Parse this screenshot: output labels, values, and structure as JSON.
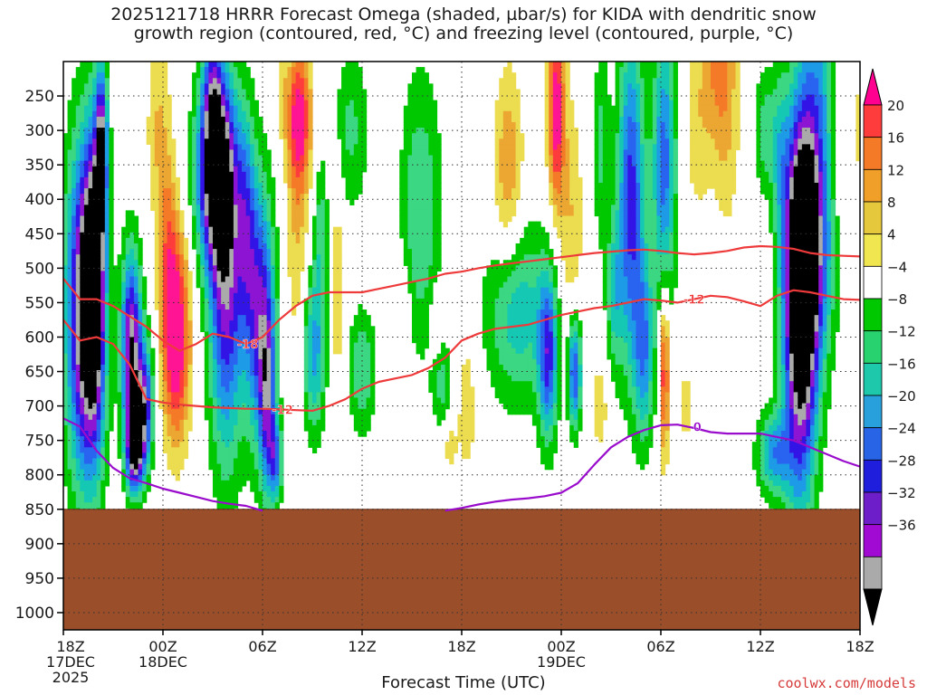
{
  "chart_data": {
    "type": "heatmap",
    "title": "2025121718 HRRR Forecast Omega (shaded, µbar/s) for KIDA with dendritic snow",
    "subtitle": "growth region (contoured, red, °C) and freezing level (contoured, purple, °C)",
    "xlabel": "Forecast Time (UTC)",
    "ylabel": "",
    "x_ticks": [
      {
        "h": 0,
        "l1": "18Z",
        "l2": "17DEC",
        "l3": "2025"
      },
      {
        "h": 6,
        "l1": "00Z",
        "l2": "18DEC",
        "l3": ""
      },
      {
        "h": 12,
        "l1": "06Z",
        "l2": "",
        "l3": ""
      },
      {
        "h": 18,
        "l1": "12Z",
        "l2": "",
        "l3": ""
      },
      {
        "h": 24,
        "l1": "18Z",
        "l2": "",
        "l3": ""
      },
      {
        "h": 30,
        "l1": "00Z",
        "l2": "19DEC",
        "l3": ""
      },
      {
        "h": 36,
        "l1": "06Z",
        "l2": "",
        "l3": ""
      },
      {
        "h": 42,
        "l1": "12Z",
        "l2": "",
        "l3": ""
      },
      {
        "h": 48,
        "l1": "18Z",
        "l2": "",
        "l3": ""
      }
    ],
    "y_ticks": [
      250,
      300,
      350,
      400,
      450,
      500,
      550,
      600,
      650,
      700,
      750,
      800,
      850,
      900,
      950,
      1000
    ],
    "ylim": [
      200,
      1025
    ],
    "xlim": [
      0,
      48
    ],
    "grid": true,
    "colorbar": {
      "labels": [
        "20",
        "16",
        "12",
        "8",
        "4",
        "−4",
        "−8",
        "−12",
        "−16",
        "−20",
        "−24",
        "−28",
        "−32",
        "−36"
      ],
      "colors": [
        "#ff0090",
        "#ff3c3c",
        "#f57a28",
        "#f0a028",
        "#e6c83c",
        "#f0e650",
        "#ffffff",
        "#00c800",
        "#28d26e",
        "#1ec8aa",
        "#28a0dc",
        "#2864e6",
        "#1e1edc",
        "#6e1ec8",
        "#a00ad2",
        "#aaaaaa",
        "#000000"
      ]
    },
    "contours": {
      "dgz_top_label": "-12",
      "dgz_bottom_label": "-18",
      "dgz_bottom2_label": "-12",
      "freezing_label": "0",
      "dgz_upper": [
        [
          0,
          515
        ],
        [
          1,
          545
        ],
        [
          2,
          545
        ],
        [
          3,
          555
        ],
        [
          4,
          570
        ],
        [
          5,
          585
        ],
        [
          6,
          605
        ],
        [
          7,
          620
        ],
        [
          8,
          610
        ],
        [
          9,
          595
        ],
        [
          10,
          600
        ],
        [
          11,
          610
        ],
        [
          12,
          600
        ],
        [
          13,
          575
        ],
        [
          14,
          555
        ],
        [
          15,
          540
        ],
        [
          16,
          535
        ],
        [
          17,
          535
        ],
        [
          18,
          535
        ],
        [
          19,
          530
        ],
        [
          20,
          525
        ],
        [
          21,
          520
        ],
        [
          22,
          515
        ],
        [
          23,
          508
        ],
        [
          24,
          505
        ],
        [
          25,
          500
        ],
        [
          26,
          496
        ],
        [
          27,
          493
        ],
        [
          28,
          490
        ],
        [
          29,
          487
        ],
        [
          30,
          484
        ],
        [
          31,
          481
        ],
        [
          32,
          478
        ],
        [
          33,
          476
        ],
        [
          34,
          474
        ],
        [
          35,
          473
        ],
        [
          36,
          475
        ],
        [
          37,
          478
        ],
        [
          38,
          480
        ],
        [
          39,
          478
        ],
        [
          40,
          475
        ],
        [
          41,
          470
        ],
        [
          42,
          468
        ],
        [
          43,
          469
        ],
        [
          44,
          472
        ],
        [
          45,
          478
        ],
        [
          46,
          481
        ],
        [
          47,
          482
        ],
        [
          48,
          483
        ]
      ],
      "dgz_lower": [
        [
          0,
          575
        ],
        [
          1,
          605
        ],
        [
          2,
          600
        ],
        [
          3,
          610
        ],
        [
          4,
          640
        ],
        [
          5,
          690
        ],
        [
          6,
          695
        ],
        [
          7,
          698
        ],
        [
          8,
          700
        ],
        [
          9,
          702
        ],
        [
          10,
          703
        ],
        [
          11,
          704
        ],
        [
          12,
          704
        ],
        [
          13,
          705
        ],
        [
          14,
          706
        ],
        [
          15,
          707
        ],
        [
          16,
          700
        ],
        [
          17,
          690
        ],
        [
          18,
          675
        ],
        [
          19,
          665
        ],
        [
          20,
          660
        ],
        [
          21,
          655
        ],
        [
          22,
          645
        ],
        [
          23,
          630
        ],
        [
          24,
          605
        ],
        [
          25,
          595
        ],
        [
          26,
          588
        ],
        [
          27,
          585
        ],
        [
          28,
          582
        ],
        [
          29,
          575
        ],
        [
          30,
          568
        ],
        [
          31,
          563
        ],
        [
          32,
          558
        ],
        [
          33,
          555
        ],
        [
          34,
          550
        ],
        [
          35,
          545
        ],
        [
          36,
          547
        ],
        [
          37,
          550
        ],
        [
          38,
          545
        ],
        [
          39,
          540
        ],
        [
          40,
          542
        ],
        [
          41,
          548
        ],
        [
          42,
          555
        ],
        [
          43,
          540
        ],
        [
          44,
          532
        ],
        [
          45,
          535
        ],
        [
          46,
          540
        ],
        [
          47,
          545
        ],
        [
          48,
          546
        ]
      ],
      "freezing": [
        [
          0,
          718
        ],
        [
          1,
          730
        ],
        [
          2,
          765
        ],
        [
          3,
          790
        ],
        [
          4,
          805
        ],
        [
          5,
          812
        ],
        [
          6,
          820
        ],
        [
          7,
          826
        ],
        [
          8,
          832
        ],
        [
          9,
          838
        ],
        [
          10,
          842
        ],
        [
          11,
          845
        ],
        [
          12,
          852
        ]
      ],
      "freezing2": [
        [
          23,
          852
        ],
        [
          24,
          848
        ],
        [
          25,
          843
        ],
        [
          26,
          839
        ],
        [
          27,
          836
        ],
        [
          28,
          834
        ],
        [
          29,
          831
        ],
        [
          30,
          826
        ],
        [
          31,
          812
        ],
        [
          32,
          785
        ],
        [
          33,
          760
        ],
        [
          34,
          745
        ],
        [
          35,
          735
        ],
        [
          36,
          728
        ],
        [
          37,
          727
        ],
        [
          38,
          732
        ],
        [
          39,
          738
        ],
        [
          40,
          740
        ],
        [
          41,
          740
        ],
        [
          42,
          740
        ],
        [
          43,
          745
        ],
        [
          44,
          750
        ],
        [
          45,
          760
        ],
        [
          46,
          770
        ],
        [
          47,
          780
        ],
        [
          48,
          788
        ]
      ],
      "ground_top": 850
    },
    "cells": [
      {
        "h": 1.3,
        "p": 560,
        "w": 1.1,
        "d": 240,
        "v": -40
      },
      {
        "h": 2.3,
        "p": 330,
        "w": 0.35,
        "d": 120,
        "v": -30
      },
      {
        "h": 1.9,
        "p": 520,
        "w": 0.6,
        "d": 220,
        "v": -26
      },
      {
        "h": 4.1,
        "p": 620,
        "w": 0.6,
        "d": 140,
        "v": -36
      },
      {
        "h": 4.9,
        "p": 700,
        "w": 0.5,
        "d": 90,
        "v": -28
      },
      {
        "h": 4.3,
        "p": 760,
        "w": 0.5,
        "d": 60,
        "v": -34
      },
      {
        "h": 6.3,
        "p": 470,
        "w": 0.5,
        "d": 150,
        "v": 10
      },
      {
        "h": 6.8,
        "p": 600,
        "w": 0.8,
        "d": 150,
        "v": 26
      },
      {
        "h": 5.7,
        "p": 300,
        "w": 0.7,
        "d": 150,
        "v": 8
      },
      {
        "h": 9.1,
        "p": 360,
        "w": 1.1,
        "d": 130,
        "v": -38
      },
      {
        "h": 9.8,
        "p": 520,
        "w": 1.0,
        "d": 250,
        "v": -30
      },
      {
        "h": 9.0,
        "p": 230,
        "w": 0.6,
        "d": 90,
        "v": -16
      },
      {
        "h": 11.0,
        "p": 420,
        "w": 0.6,
        "d": 160,
        "v": -14
      },
      {
        "h": 11.8,
        "p": 560,
        "w": 0.9,
        "d": 190,
        "v": -26
      },
      {
        "h": 12.3,
        "p": 690,
        "w": 0.5,
        "d": 140,
        "v": -22
      },
      {
        "h": 12.8,
        "p": 780,
        "w": 0.4,
        "d": 60,
        "v": -18
      },
      {
        "h": 14.2,
        "p": 280,
        "w": 0.7,
        "d": 100,
        "v": 22
      },
      {
        "h": 14.1,
        "p": 450,
        "w": 0.7,
        "d": 180,
        "v": 8
      },
      {
        "h": 13.2,
        "p": 250,
        "w": 0.3,
        "d": 60,
        "v": 6
      },
      {
        "h": 15.1,
        "p": 620,
        "w": 0.7,
        "d": 120,
        "v": -18
      },
      {
        "h": 15.5,
        "p": 450,
        "w": 0.4,
        "d": 110,
        "v": -10
      },
      {
        "h": 16.5,
        "p": 520,
        "w": 0.4,
        "d": 200,
        "v": 7
      },
      {
        "h": 17.3,
        "p": 300,
        "w": 1.1,
        "d": 120,
        "v": -9
      },
      {
        "h": 18.0,
        "p": 650,
        "w": 0.8,
        "d": 90,
        "v": -12
      },
      {
        "h": 19.6,
        "p": 410,
        "w": 0.6,
        "d": 110,
        "v": 5
      },
      {
        "h": 20.6,
        "p": 560,
        "w": 0.4,
        "d": 80,
        "v": 5
      },
      {
        "h": 21.5,
        "p": 420,
        "w": 1.3,
        "d": 200,
        "v": -12
      },
      {
        "h": 22.4,
        "p": 580,
        "w": 0.4,
        "d": 60,
        "v": 5
      },
      {
        "h": 24.3,
        "p": 700,
        "w": 0.6,
        "d": 110,
        "v": 7
      },
      {
        "h": 22.8,
        "p": 670,
        "w": 0.6,
        "d": 60,
        "v": -9
      },
      {
        "h": 23.3,
        "p": 760,
        "w": 0.4,
        "d": 40,
        "v": 6
      },
      {
        "h": 26.8,
        "p": 370,
        "w": 0.9,
        "d": 160,
        "v": 12
      },
      {
        "h": 27.3,
        "p": 560,
        "w": 1.8,
        "d": 130,
        "v": -16
      },
      {
        "h": 29.2,
        "p": 630,
        "w": 0.6,
        "d": 120,
        "v": -24
      },
      {
        "h": 29.7,
        "p": 270,
        "w": 0.5,
        "d": 140,
        "v": 23
      },
      {
        "h": 30.6,
        "p": 430,
        "w": 0.7,
        "d": 180,
        "v": 8
      },
      {
        "h": 30.8,
        "p": 650,
        "w": 0.4,
        "d": 80,
        "v": -26
      },
      {
        "h": 32.4,
        "p": 320,
        "w": 0.5,
        "d": 150,
        "v": -9
      },
      {
        "h": 32.3,
        "p": 700,
        "w": 0.5,
        "d": 70,
        "v": 7
      },
      {
        "h": 33.2,
        "p": 540,
        "w": 0.5,
        "d": 110,
        "v": -12
      },
      {
        "h": 34.2,
        "p": 400,
        "w": 0.8,
        "d": 240,
        "v": -26
      },
      {
        "h": 35.0,
        "p": 620,
        "w": 0.6,
        "d": 130,
        "v": -18
      },
      {
        "h": 36.2,
        "p": 650,
        "w": 0.3,
        "d": 120,
        "v": 20
      },
      {
        "h": 36.2,
        "p": 350,
        "w": 0.7,
        "d": 200,
        "v": -22
      },
      {
        "h": 37.5,
        "p": 700,
        "w": 0.3,
        "d": 80,
        "v": 6
      },
      {
        "h": 38.2,
        "p": 300,
        "w": 0.8,
        "d": 140,
        "v": 6
      },
      {
        "h": 39.5,
        "p": 170,
        "w": 1.0,
        "d": 150,
        "v": 14
      },
      {
        "h": 40.0,
        "p": 330,
        "w": 0.8,
        "d": 150,
        "v": 5
      },
      {
        "h": 42.3,
        "p": 300,
        "w": 0.7,
        "d": 90,
        "v": -10
      },
      {
        "h": 43.2,
        "p": 330,
        "w": 0.5,
        "d": 120,
        "v": -9
      },
      {
        "h": 44.4,
        "p": 560,
        "w": 1.0,
        "d": 270,
        "v": -42
      },
      {
        "h": 45.0,
        "p": 460,
        "w": 1.3,
        "d": 180,
        "v": -30
      },
      {
        "h": 45.5,
        "p": 220,
        "w": 1.0,
        "d": 150,
        "v": -12
      },
      {
        "h": 42.8,
        "p": 770,
        "w": 1.0,
        "d": 60,
        "v": -18
      },
      {
        "h": 46.6,
        "p": 320,
        "w": 0.4,
        "d": 120,
        "v": 6
      },
      {
        "h": 47.8,
        "p": 300,
        "w": 0.4,
        "d": 120,
        "v": 5
      }
    ]
  },
  "credit": "coolwx.com/models"
}
